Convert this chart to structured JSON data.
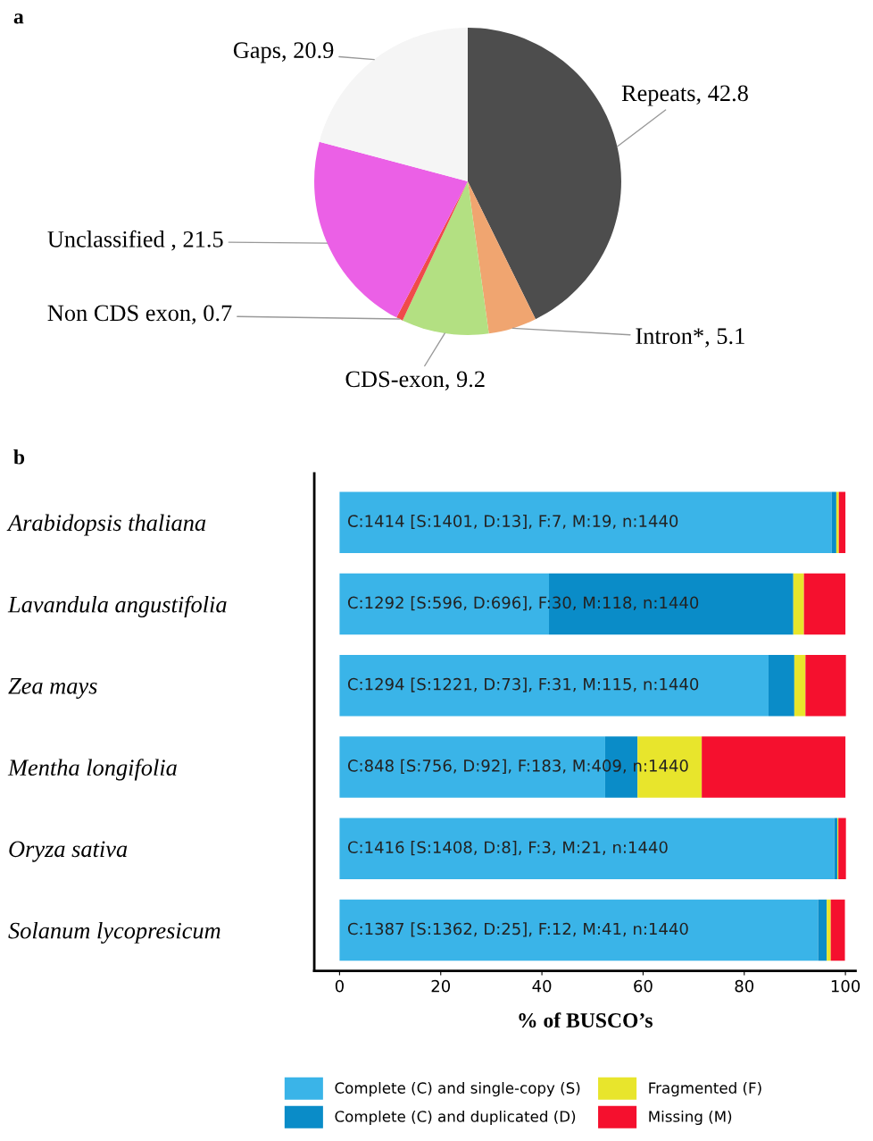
{
  "chart_data": [
    {
      "type": "pie",
      "title": "a",
      "categories": [
        "Repeats, 42.8",
        "Intron*, 5.1",
        "CDS-exon, 9.2",
        "Non CDS exon, 0.7",
        "Unclassified , 21.5",
        "Gaps, 20.9"
      ],
      "values": [
        42.8,
        5.1,
        9.2,
        0.7,
        21.5,
        20.9
      ],
      "colors": [
        "#4d4d4d",
        "#f0a570",
        "#b3e082",
        "#f04a4a",
        "#eb60e6",
        "#f5f5f5"
      ]
    },
    {
      "type": "bar",
      "title": "b",
      "orientation": "horizontal",
      "stacked": true,
      "categories": [
        "Arabidopsis thaliana",
        "Lavandula angustifolia",
        "Zea mays",
        "Mentha longifolia",
        "Oryza sativa",
        "Solanum lycopresicum"
      ],
      "xlabel": "% of BUSCO’s",
      "xlim": [
        -5,
        102
      ],
      "xticks": [
        0,
        20,
        40,
        60,
        80,
        100
      ],
      "tick_labels": "xy",
      "legend": "bottom",
      "series": [
        {
          "name": "Complete (C) and single-copy (S)",
          "color": "#3ab4e8",
          "values": [
            97.3,
            41.4,
            84.8,
            52.5,
            97.8,
            94.6
          ],
          "value_labels": [
            "C:1414 [S:1401, D:13], F:7, M:19, n:1440",
            "C:1292 [S:596, D:696], F:30, M:118, n:1440",
            "C:1294 [S:1221, D:73], F:31, M:115, n:1440",
            "C:848 [S:756, D:92], F:183, M:409, n:1440",
            "C:1416 [S:1408, D:8], F:3, M:21, n:1440",
            "C:1387 [S:1362, D:25], F:12, M:41, n:1440"
          ]
        },
        {
          "name": "Complete (C) and duplicated (D)",
          "color": "#0a8cc8",
          "values": [
            0.9,
            48.3,
            5.1,
            6.4,
            0.6,
            1.7
          ]
        },
        {
          "name": "Fragmented (F)",
          "color": "#e8e52c",
          "values": [
            0.5,
            2.1,
            2.2,
            12.7,
            0.2,
            0.8
          ]
        },
        {
          "name": "Missing (M)",
          "color": "#f5102e",
          "values": [
            1.3,
            8.2,
            8.0,
            28.4,
            1.5,
            2.8
          ]
        }
      ]
    }
  ]
}
